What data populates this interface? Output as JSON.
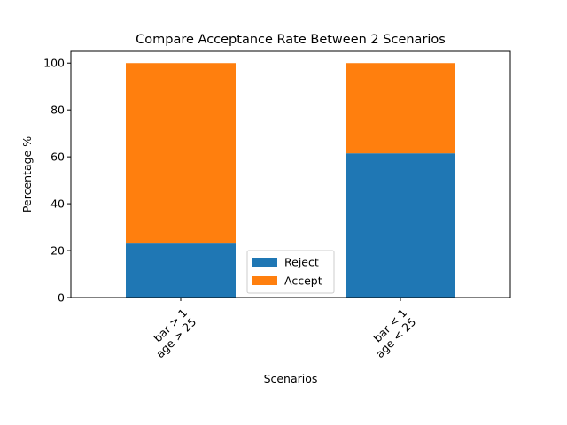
{
  "chart_data": {
    "type": "bar",
    "stacked": true,
    "title": "Compare Acceptance Rate Between 2 Scenarios",
    "xlabel": "Scenarios",
    "ylabel": "Percentage %",
    "ylim": [
      0,
      105
    ],
    "yticks": [
      0,
      20,
      40,
      60,
      80,
      100
    ],
    "categories": [
      [
        "bar > 1",
        "age > 25"
      ],
      [
        "bar < 1",
        "age < 25"
      ]
    ],
    "series": [
      {
        "name": "Reject",
        "color": "#1f77b4",
        "values": [
          23.0,
          61.5
        ]
      },
      {
        "name": "Accept",
        "color": "#ff7f0e",
        "values": [
          77.0,
          38.5
        ]
      }
    ],
    "legend_position": "bottom-center",
    "grid": false
  }
}
